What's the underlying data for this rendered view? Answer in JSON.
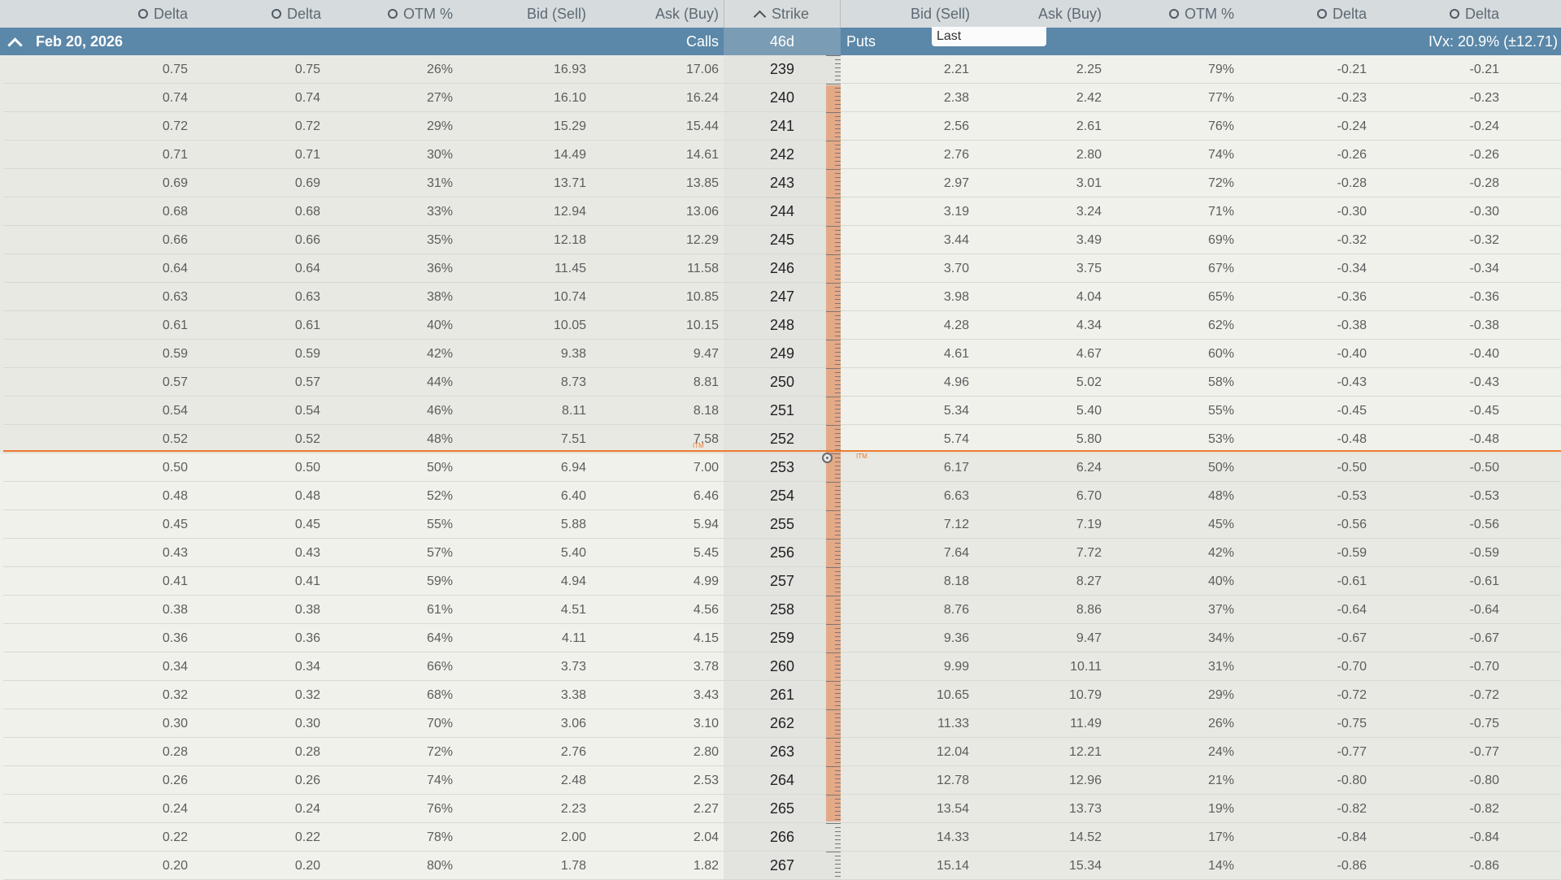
{
  "header": {
    "columns": [
      {
        "label": "Delta",
        "icon": "circle-icon"
      },
      {
        "label": "Delta",
        "icon": "circle-icon"
      },
      {
        "label": "OTM %",
        "icon": "circle-icon"
      },
      {
        "label": "Bid (Sell)"
      },
      {
        "label": "Ask (Buy)"
      },
      {
        "label": "Strike",
        "icon": "chevron-up-icon"
      },
      {
        "label": "Bid (Sell)"
      },
      {
        "label": "Ask (Buy)"
      },
      {
        "label": "OTM %",
        "icon": "circle-icon"
      },
      {
        "label": "Delta",
        "icon": "circle-icon"
      },
      {
        "label": "Delta",
        "icon": "circle-icon"
      }
    ]
  },
  "expiration": {
    "date": "Feb 20, 2026",
    "calls_label": "Calls",
    "dte": "46d",
    "puts_label": "Puts",
    "ivx": "IVx: 20.9% (±12.71)",
    "last_tag": "Last"
  },
  "itm_label": "ITM",
  "colors": {
    "header_bg": "#d6dbde",
    "expiration_bar": "#5b87a8",
    "itm_shade": "#e9e9e4",
    "otm_shade": "#f1f1ec",
    "strike_col": "#e3e3e0",
    "atm_line": "#ec7a2c",
    "range_bar": "#e4aa88"
  },
  "rows": [
    {
      "call_delta1": "0.75",
      "call_delta2": "0.75",
      "call_otm": "26%",
      "call_bid": "16.93",
      "call_ask": "17.06",
      "strike": "239",
      "put_bid": "2.21",
      "put_ask": "2.25",
      "put_otm": "79%",
      "put_delta1": "-0.21",
      "put_delta2": "-0.21"
    },
    {
      "call_delta1": "0.74",
      "call_delta2": "0.74",
      "call_otm": "27%",
      "call_bid": "16.10",
      "call_ask": "16.24",
      "strike": "240",
      "put_bid": "2.38",
      "put_ask": "2.42",
      "put_otm": "77%",
      "put_delta1": "-0.23",
      "put_delta2": "-0.23"
    },
    {
      "call_delta1": "0.72",
      "call_delta2": "0.72",
      "call_otm": "29%",
      "call_bid": "15.29",
      "call_ask": "15.44",
      "strike": "241",
      "put_bid": "2.56",
      "put_ask": "2.61",
      "put_otm": "76%",
      "put_delta1": "-0.24",
      "put_delta2": "-0.24"
    },
    {
      "call_delta1": "0.71",
      "call_delta2": "0.71",
      "call_otm": "30%",
      "call_bid": "14.49",
      "call_ask": "14.61",
      "strike": "242",
      "put_bid": "2.76",
      "put_ask": "2.80",
      "put_otm": "74%",
      "put_delta1": "-0.26",
      "put_delta2": "-0.26"
    },
    {
      "call_delta1": "0.69",
      "call_delta2": "0.69",
      "call_otm": "31%",
      "call_bid": "13.71",
      "call_ask": "13.85",
      "strike": "243",
      "put_bid": "2.97",
      "put_ask": "3.01",
      "put_otm": "72%",
      "put_delta1": "-0.28",
      "put_delta2": "-0.28"
    },
    {
      "call_delta1": "0.68",
      "call_delta2": "0.68",
      "call_otm": "33%",
      "call_bid": "12.94",
      "call_ask": "13.06",
      "strike": "244",
      "put_bid": "3.19",
      "put_ask": "3.24",
      "put_otm": "71%",
      "put_delta1": "-0.30",
      "put_delta2": "-0.30"
    },
    {
      "call_delta1": "0.66",
      "call_delta2": "0.66",
      "call_otm": "35%",
      "call_bid": "12.18",
      "call_ask": "12.29",
      "strike": "245",
      "put_bid": "3.44",
      "put_ask": "3.49",
      "put_otm": "69%",
      "put_delta1": "-0.32",
      "put_delta2": "-0.32"
    },
    {
      "call_delta1": "0.64",
      "call_delta2": "0.64",
      "call_otm": "36%",
      "call_bid": "11.45",
      "call_ask": "11.58",
      "strike": "246",
      "put_bid": "3.70",
      "put_ask": "3.75",
      "put_otm": "67%",
      "put_delta1": "-0.34",
      "put_delta2": "-0.34"
    },
    {
      "call_delta1": "0.63",
      "call_delta2": "0.63",
      "call_otm": "38%",
      "call_bid": "10.74",
      "call_ask": "10.85",
      "strike": "247",
      "put_bid": "3.98",
      "put_ask": "4.04",
      "put_otm": "65%",
      "put_delta1": "-0.36",
      "put_delta2": "-0.36"
    },
    {
      "call_delta1": "0.61",
      "call_delta2": "0.61",
      "call_otm": "40%",
      "call_bid": "10.05",
      "call_ask": "10.15",
      "strike": "248",
      "put_bid": "4.28",
      "put_ask": "4.34",
      "put_otm": "62%",
      "put_delta1": "-0.38",
      "put_delta2": "-0.38"
    },
    {
      "call_delta1": "0.59",
      "call_delta2": "0.59",
      "call_otm": "42%",
      "call_bid": "9.38",
      "call_ask": "9.47",
      "strike": "249",
      "put_bid": "4.61",
      "put_ask": "4.67",
      "put_otm": "60%",
      "put_delta1": "-0.40",
      "put_delta2": "-0.40"
    },
    {
      "call_delta1": "0.57",
      "call_delta2": "0.57",
      "call_otm": "44%",
      "call_bid": "8.73",
      "call_ask": "8.81",
      "strike": "250",
      "put_bid": "4.96",
      "put_ask": "5.02",
      "put_otm": "58%",
      "put_delta1": "-0.43",
      "put_delta2": "-0.43"
    },
    {
      "call_delta1": "0.54",
      "call_delta2": "0.54",
      "call_otm": "46%",
      "call_bid": "8.11",
      "call_ask": "8.18",
      "strike": "251",
      "put_bid": "5.34",
      "put_ask": "5.40",
      "put_otm": "55%",
      "put_delta1": "-0.45",
      "put_delta2": "-0.45"
    },
    {
      "call_delta1": "0.52",
      "call_delta2": "0.52",
      "call_otm": "48%",
      "call_bid": "7.51",
      "call_ask": "7.58",
      "strike": "252",
      "put_bid": "5.74",
      "put_ask": "5.80",
      "put_otm": "53%",
      "put_delta1": "-0.48",
      "put_delta2": "-0.48"
    },
    {
      "call_delta1": "0.50",
      "call_delta2": "0.50",
      "call_otm": "50%",
      "call_bid": "6.94",
      "call_ask": "7.00",
      "strike": "253",
      "put_bid": "6.17",
      "put_ask": "6.24",
      "put_otm": "50%",
      "put_delta1": "-0.50",
      "put_delta2": "-0.50"
    },
    {
      "call_delta1": "0.48",
      "call_delta2": "0.48",
      "call_otm": "52%",
      "call_bid": "6.40",
      "call_ask": "6.46",
      "strike": "254",
      "put_bid": "6.63",
      "put_ask": "6.70",
      "put_otm": "48%",
      "put_delta1": "-0.53",
      "put_delta2": "-0.53"
    },
    {
      "call_delta1": "0.45",
      "call_delta2": "0.45",
      "call_otm": "55%",
      "call_bid": "5.88",
      "call_ask": "5.94",
      "strike": "255",
      "put_bid": "7.12",
      "put_ask": "7.19",
      "put_otm": "45%",
      "put_delta1": "-0.56",
      "put_delta2": "-0.56"
    },
    {
      "call_delta1": "0.43",
      "call_delta2": "0.43",
      "call_otm": "57%",
      "call_bid": "5.40",
      "call_ask": "5.45",
      "strike": "256",
      "put_bid": "7.64",
      "put_ask": "7.72",
      "put_otm": "42%",
      "put_delta1": "-0.59",
      "put_delta2": "-0.59"
    },
    {
      "call_delta1": "0.41",
      "call_delta2": "0.41",
      "call_otm": "59%",
      "call_bid": "4.94",
      "call_ask": "4.99",
      "strike": "257",
      "put_bid": "8.18",
      "put_ask": "8.27",
      "put_otm": "40%",
      "put_delta1": "-0.61",
      "put_delta2": "-0.61"
    },
    {
      "call_delta1": "0.38",
      "call_delta2": "0.38",
      "call_otm": "61%",
      "call_bid": "4.51",
      "call_ask": "4.56",
      "strike": "258",
      "put_bid": "8.76",
      "put_ask": "8.86",
      "put_otm": "37%",
      "put_delta1": "-0.64",
      "put_delta2": "-0.64"
    },
    {
      "call_delta1": "0.36",
      "call_delta2": "0.36",
      "call_otm": "64%",
      "call_bid": "4.11",
      "call_ask": "4.15",
      "strike": "259",
      "put_bid": "9.36",
      "put_ask": "9.47",
      "put_otm": "34%",
      "put_delta1": "-0.67",
      "put_delta2": "-0.67"
    },
    {
      "call_delta1": "0.34",
      "call_delta2": "0.34",
      "call_otm": "66%",
      "call_bid": "3.73",
      "call_ask": "3.78",
      "strike": "260",
      "put_bid": "9.99",
      "put_ask": "10.11",
      "put_otm": "31%",
      "put_delta1": "-0.70",
      "put_delta2": "-0.70"
    },
    {
      "call_delta1": "0.32",
      "call_delta2": "0.32",
      "call_otm": "68%",
      "call_bid": "3.38",
      "call_ask": "3.43",
      "strike": "261",
      "put_bid": "10.65",
      "put_ask": "10.79",
      "put_otm": "29%",
      "put_delta1": "-0.72",
      "put_delta2": "-0.72"
    },
    {
      "call_delta1": "0.30",
      "call_delta2": "0.30",
      "call_otm": "70%",
      "call_bid": "3.06",
      "call_ask": "3.10",
      "strike": "262",
      "put_bid": "11.33",
      "put_ask": "11.49",
      "put_otm": "26%",
      "put_delta1": "-0.75",
      "put_delta2": "-0.75"
    },
    {
      "call_delta1": "0.28",
      "call_delta2": "0.28",
      "call_otm": "72%",
      "call_bid": "2.76",
      "call_ask": "2.80",
      "strike": "263",
      "put_bid": "12.04",
      "put_ask": "12.21",
      "put_otm": "24%",
      "put_delta1": "-0.77",
      "put_delta2": "-0.77"
    },
    {
      "call_delta1": "0.26",
      "call_delta2": "0.26",
      "call_otm": "74%",
      "call_bid": "2.48",
      "call_ask": "2.53",
      "strike": "264",
      "put_bid": "12.78",
      "put_ask": "12.96",
      "put_otm": "21%",
      "put_delta1": "-0.80",
      "put_delta2": "-0.80"
    },
    {
      "call_delta1": "0.24",
      "call_delta2": "0.24",
      "call_otm": "76%",
      "call_bid": "2.23",
      "call_ask": "2.27",
      "strike": "265",
      "put_bid": "13.54",
      "put_ask": "13.73",
      "put_otm": "19%",
      "put_delta1": "-0.82",
      "put_delta2": "-0.82"
    },
    {
      "call_delta1": "0.22",
      "call_delta2": "0.22",
      "call_otm": "78%",
      "call_bid": "2.00",
      "call_ask": "2.04",
      "strike": "266",
      "put_bid": "14.33",
      "put_ask": "14.52",
      "put_otm": "17%",
      "put_delta1": "-0.84",
      "put_delta2": "-0.84"
    },
    {
      "call_delta1": "0.20",
      "call_delta2": "0.20",
      "call_otm": "80%",
      "call_bid": "1.78",
      "call_ask": "1.82",
      "strike": "267",
      "put_bid": "15.14",
      "put_ask": "15.34",
      "put_otm": "14%",
      "put_delta1": "-0.86",
      "put_delta2": "-0.86"
    }
  ],
  "atm_strike": "253",
  "expected_move_range": {
    "low": "240",
    "high": "265"
  }
}
